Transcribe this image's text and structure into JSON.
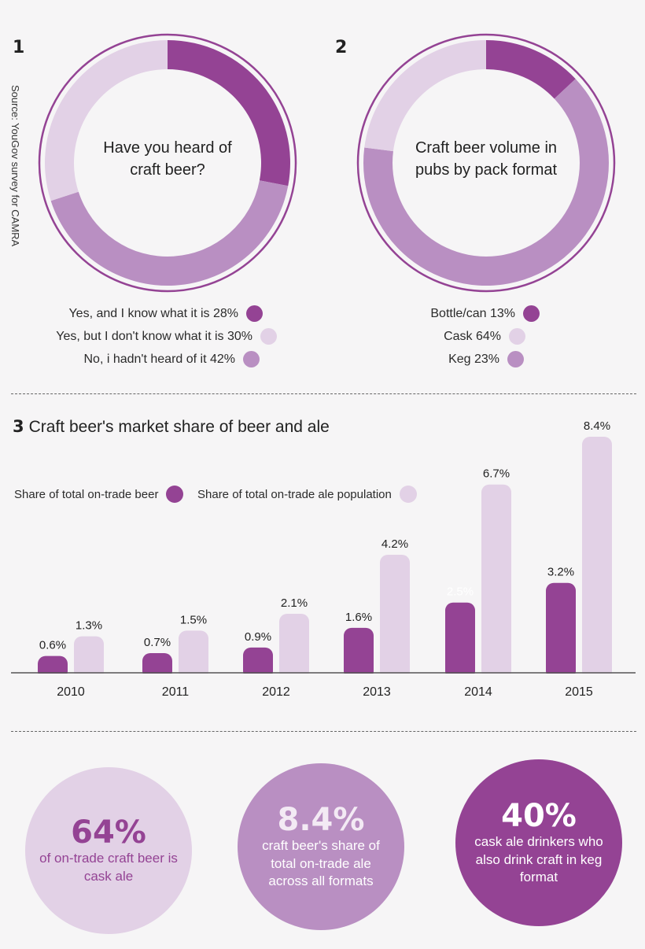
{
  "source": "Source: YouGov survey for CAMRA",
  "colors": {
    "dark": "#944394",
    "light": "#e2d1e6",
    "mid": "#b98fc2",
    "text": "#2b2b2b"
  },
  "chart_data": [
    {
      "type": "pie",
      "number": "1",
      "title": "Have you heard of craft beer?",
      "slices": [
        {
          "label": "Yes, and I know what it is 28%",
          "value": 28,
          "color": "#944394"
        },
        {
          "label": "No, i hadn't heard of it 42%",
          "value": 42,
          "color": "#b98fc2"
        },
        {
          "label": "Yes, but I don't know what it is 30%",
          "value": 30,
          "color": "#e2d1e6"
        }
      ],
      "legend": [
        {
          "label": "Yes, and I know what it is 28%",
          "color": "#944394"
        },
        {
          "label": "Yes, but I don't know what it is 30%",
          "color": "#e2d1e6"
        },
        {
          "label": "No, i hadn't heard of it 42%",
          "color": "#b98fc2"
        }
      ]
    },
    {
      "type": "pie",
      "number": "2",
      "title": "Craft beer volume in pubs by pack format",
      "slices": [
        {
          "label": "Bottle/can 13%",
          "value": 13,
          "color": "#944394"
        },
        {
          "label": "Cask 64%",
          "value": 64,
          "color": "#b98fc2"
        },
        {
          "label": "Keg 23%",
          "value": 23,
          "color": "#e2d1e6"
        }
      ],
      "legend": [
        {
          "label": "Bottle/can 13%",
          "color": "#944394"
        },
        {
          "label": "Cask 64%",
          "color": "#e2d1e6"
        },
        {
          "label": "Keg 23%",
          "color": "#b98fc2"
        }
      ]
    },
    {
      "type": "bar",
      "number": "3",
      "title": "Craft beer's market share of beer and ale",
      "categories": [
        "2010",
        "2011",
        "2012",
        "2013",
        "2014",
        "2015"
      ],
      "series": [
        {
          "name": "Share of total on-trade beer",
          "color": "#944394",
          "values": [
            0.6,
            0.7,
            0.9,
            1.6,
            2.5,
            3.2
          ],
          "labels": [
            "0.6%",
            "0.7%",
            "0.9%",
            "1.6%",
            "2.5%",
            "3.2%"
          ]
        },
        {
          "name": "Share of total on-trade ale population",
          "color": "#e2d1e6",
          "values": [
            1.3,
            1.5,
            2.1,
            4.2,
            6.7,
            8.4
          ],
          "labels": [
            "1.3%",
            "1.5%",
            "2.1%",
            "4.2%",
            "6.7%",
            "8.4%"
          ]
        }
      ],
      "ylim": [
        0,
        8.4
      ]
    }
  ],
  "stats": [
    {
      "value": "64%",
      "text": "of on-trade craft beer is cask ale",
      "bg": "#e2d1e6",
      "value_color": "#944394",
      "text_color": "#944394"
    },
    {
      "value": "8.4%",
      "text": "craft beer's share of total on-trade ale across all formats",
      "bg": "#b98fc2",
      "value_color": "#f3eaf4",
      "text_color": "#ffffff"
    },
    {
      "value": "40%",
      "text": "cask ale drinkers who also drink craft in keg format",
      "bg": "#944394",
      "value_color": "#ffffff",
      "text_color": "#ffffff"
    }
  ]
}
